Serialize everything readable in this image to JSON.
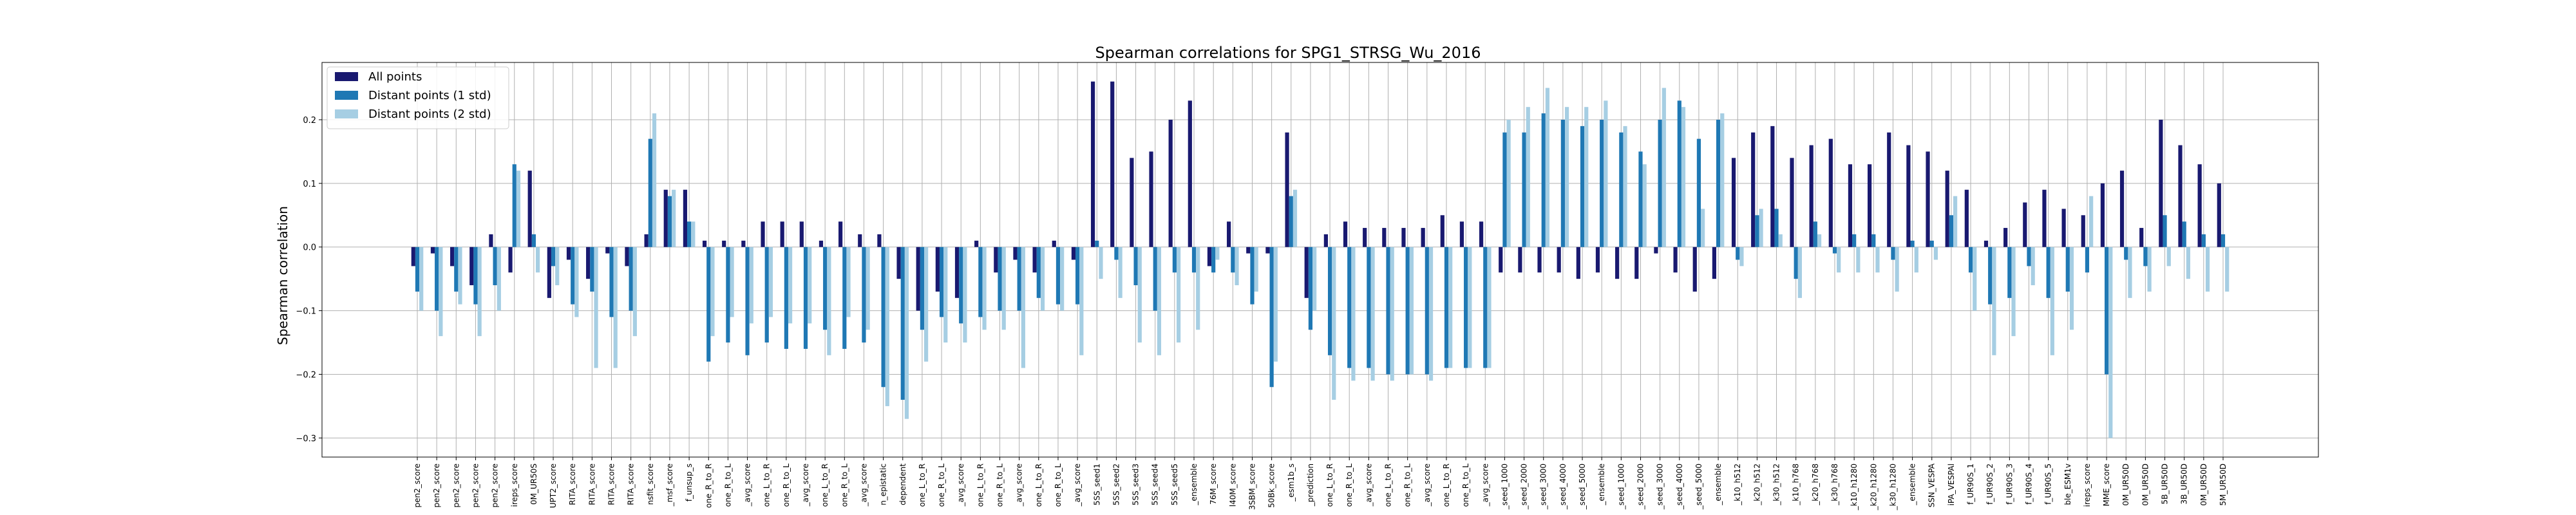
{
  "chart_data": {
    "type": "bar",
    "title": "Spearman correlations for SPG1_STRSG_Wu_2016",
    "xlabel": "",
    "ylabel": "Spearman correlation",
    "ylim": [
      -0.33,
      0.29
    ],
    "yticks": [
      -0.3,
      -0.2,
      -0.1,
      0.0,
      0.1,
      0.2
    ],
    "ytick_labels": [
      "−0.3",
      "−0.2",
      "−0.1",
      "0.0",
      "0.1",
      "0.2"
    ],
    "grid": true,
    "legend_position": "top-left",
    "categories": [
      "pen2_score",
      "pen2_score",
      "pen2_score",
      "pen2_score",
      "pen2_score",
      "ireps_score",
      "0M_UR50S",
      "UPT2_score",
      "RITA_score",
      "RITA_score",
      "RITA_score",
      "RITA_score",
      "nsfit_score",
      "_msf_score",
      "f_unsup_s",
      "one_R_to_R",
      "one_R_to_L",
      "_avg_score",
      "one_L_to_R",
      "one_R_to_L",
      "_avg_score",
      "one_L_to_R",
      "one_R_to_L",
      "_avg_score",
      "n_epistatic",
      "dependent",
      "one_L_to_R",
      "one_R_to_L",
      "_avg_score",
      "one_L_to_R",
      "one_R_to_L",
      "_avg_score",
      "one_L_to_R",
      "one_R_to_L",
      "_avg_score",
      "5SS_seed1",
      "5SS_seed2",
      "5SS_seed3",
      "5SS_seed4",
      "5SS_seed5",
      "_ensemble",
      "76M_score",
      "l40M_score",
      "3SBM_score",
      "50Bk_score",
      "_esm1b_s",
      "_prediction",
      "one_L_to_R",
      "one_R_to_L",
      "_avg_score",
      "one_L_to_R",
      "one_R_to_L",
      "_avg_score",
      "one_L_to_R",
      "one_R_to_L",
      "_avg_score",
      "_seed_1000",
      "_seed_2000",
      "_seed_3000",
      "_seed_4000",
      "_seed_5000",
      "_ensemble",
      "_seed_1000",
      "_seed_2000",
      "_seed_3000",
      "_seed_4000",
      "_seed_5000",
      "_ensemble",
      "_k10_h512",
      "_k20_h512",
      "_k30_h512",
      "_k10_h768",
      "_k20_h768",
      "_k30_h768",
      "_k10_h1280",
      "_k20_h1280",
      "_k30_h1280",
      "_ensemble",
      "SSN_VESPA",
      "iPA_VESPAl",
      "f_UR90S_1",
      "f_UR90S_2",
      "f_UR90S_3",
      "f_UR90S_4",
      "f_UR90S_5",
      "ble_ESM1v",
      "ireps_score",
      "MME_score",
      "0M_UR50D",
      "0M_UR50D",
      "5B_UR50D",
      "3B_UR50D",
      "0M_UR50D",
      "5M_UR50D"
    ],
    "series": [
      {
        "name": "All points",
        "color": "#191970",
        "values": [
          -0.03,
          -0.01,
          -0.03,
          -0.06,
          0.02,
          -0.04,
          0.12,
          -0.08,
          -0.02,
          -0.05,
          -0.01,
          -0.03,
          0.02,
          0.09,
          0.09,
          0.01,
          0.01,
          0.01,
          0.04,
          0.04,
          0.04,
          0.01,
          0.04,
          0.02,
          0.02,
          -0.05,
          -0.1,
          -0.07,
          -0.08,
          0.01,
          -0.04,
          -0.02,
          -0.04,
          0.01,
          -0.02,
          0.26,
          0.26,
          0.14,
          0.15,
          0.2,
          0.23,
          -0.03,
          0.04,
          -0.01,
          -0.01,
          0.18,
          -0.08,
          0.02,
          0.04,
          0.03,
          0.03,
          0.03,
          0.03,
          0.05,
          0.04,
          0.04,
          -0.04,
          -0.04,
          -0.04,
          -0.04,
          -0.05,
          -0.04,
          -0.05,
          -0.05,
          -0.01,
          -0.04,
          -0.07,
          -0.05,
          0.14,
          0.18,
          0.19,
          0.14,
          0.16,
          0.17,
          0.13,
          0.13,
          0.18,
          0.16,
          0.15,
          0.12,
          0.09,
          0.01,
          0.03,
          0.07,
          0.09,
          0.06,
          0.05,
          0.1,
          0.12,
          0.03,
          0.2,
          0.16,
          0.13,
          0.1
        ]
      },
      {
        "name": "Distant points (1 std)",
        "color": "#1f78b4",
        "values": [
          -0.07,
          -0.1,
          -0.07,
          -0.09,
          -0.06,
          0.13,
          0.02,
          -0.03,
          -0.09,
          -0.07,
          -0.11,
          -0.1,
          0.17,
          0.08,
          0.04,
          -0.18,
          -0.15,
          -0.17,
          -0.15,
          -0.16,
          -0.16,
          -0.13,
          -0.16,
          -0.15,
          -0.22,
          -0.24,
          -0.13,
          -0.11,
          -0.12,
          -0.11,
          -0.1,
          -0.1,
          -0.08,
          -0.09,
          -0.09,
          0.01,
          -0.02,
          -0.06,
          -0.1,
          -0.04,
          -0.04,
          -0.04,
          -0.04,
          -0.09,
          -0.22,
          0.08,
          -0.13,
          -0.17,
          -0.19,
          -0.19,
          -0.2,
          -0.2,
          -0.2,
          -0.19,
          -0.19,
          -0.19,
          0.18,
          0.18,
          0.21,
          0.2,
          0.19,
          0.2,
          0.18,
          0.15,
          0.2,
          0.23,
          0.17,
          0.2,
          -0.02,
          0.05,
          0.06,
          -0.05,
          0.04,
          -0.01,
          0.02,
          0.02,
          -0.02,
          0.01,
          0.01,
          0.05,
          -0.04,
          -0.09,
          -0.08,
          -0.03,
          -0.08,
          -0.07,
          -0.04,
          -0.2,
          -0.02,
          -0.03,
          0.05,
          0.04,
          0.02,
          0.02
        ]
      },
      {
        "name": "Distant points (2 std)",
        "color": "#a6cee3",
        "values": [
          -0.1,
          -0.14,
          -0.09,
          -0.14,
          -0.1,
          0.12,
          -0.04,
          -0.06,
          -0.11,
          -0.19,
          -0.19,
          -0.14,
          0.21,
          0.09,
          0.04,
          -0.14,
          -0.11,
          -0.12,
          -0.11,
          -0.12,
          -0.12,
          -0.17,
          -0.11,
          -0.13,
          -0.25,
          -0.27,
          -0.18,
          -0.15,
          -0.15,
          -0.13,
          -0.13,
          -0.19,
          -0.1,
          -0.1,
          -0.17,
          -0.05,
          -0.08,
          -0.15,
          -0.17,
          -0.15,
          -0.13,
          -0.02,
          -0.06,
          -0.07,
          -0.18,
          0.09,
          -0.1,
          -0.24,
          -0.21,
          -0.21,
          -0.21,
          -0.2,
          -0.21,
          -0.19,
          -0.19,
          -0.19,
          0.2,
          0.22,
          0.25,
          0.22,
          0.22,
          0.23,
          0.19,
          0.13,
          0.25,
          0.22,
          0.06,
          0.21,
          -0.03,
          0.06,
          0.02,
          -0.08,
          0.02,
          -0.04,
          -0.04,
          -0.04,
          -0.07,
          -0.04,
          -0.02,
          0.08,
          -0.1,
          -0.17,
          -0.14,
          -0.06,
          -0.17,
          -0.13,
          0.08,
          -0.3,
          -0.08,
          -0.07,
          -0.03,
          -0.05,
          -0.07,
          -0.07
        ]
      }
    ]
  }
}
